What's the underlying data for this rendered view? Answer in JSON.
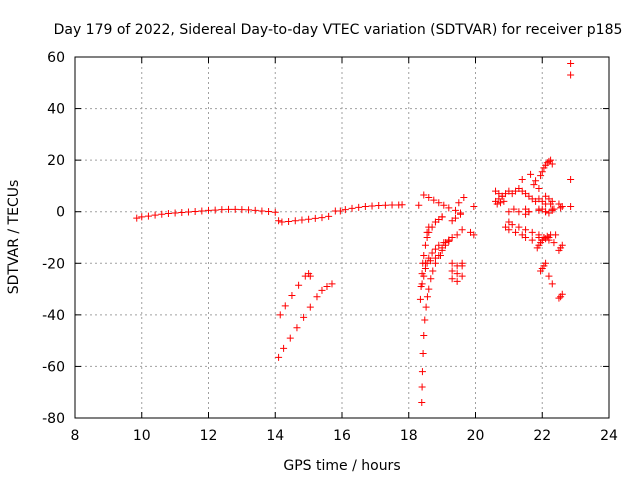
{
  "chart_data": {
    "type": "scatter",
    "title": "Day 179 of 2022, Sidereal Day-to-day VTEC variation (SDTVAR) for receiver p185",
    "xlabel": "GPS time / hours",
    "ylabel": "SDTVAR / TECUs",
    "xlim": [
      8,
      24
    ],
    "ylim": [
      -80,
      60
    ],
    "xticks": [
      8,
      10,
      12,
      14,
      16,
      18,
      20,
      22,
      24
    ],
    "yticks": [
      -80,
      -60,
      -40,
      -20,
      0,
      20,
      40,
      60
    ],
    "xtick_labels": [
      "8",
      "10",
      "12",
      "14",
      "16",
      "18",
      "20",
      "22",
      "24"
    ],
    "ytick_labels": [
      "-80",
      "-60",
      "-40",
      "-20",
      "0",
      "20",
      "40",
      "60"
    ],
    "grid": true,
    "marker": "+",
    "marker_color": "#ff0000",
    "series": [
      {
        "name": "SDTVAR",
        "x": [
          9.85,
          10.0,
          10.2,
          10.4,
          10.6,
          10.8,
          11.0,
          11.2,
          11.4,
          11.6,
          11.8,
          12.0,
          12.2,
          12.4,
          12.6,
          12.8,
          13.0,
          13.2,
          13.4,
          13.6,
          13.8,
          14.0,
          14.1,
          14.2,
          14.4,
          14.6,
          14.8,
          15.0,
          15.2,
          15.4,
          15.6,
          15.8,
          15.95,
          16.1,
          16.3,
          16.5,
          16.7,
          16.9,
          17.1,
          17.3,
          17.5,
          17.7,
          17.8,
          18.3,
          18.45,
          18.6,
          18.75,
          18.9,
          19.05,
          19.2,
          19.4,
          19.55,
          14.15,
          14.3,
          14.5,
          14.7,
          14.9,
          15.0,
          15.05,
          14.1,
          14.25,
          14.45,
          14.65,
          14.85,
          15.05,
          15.25,
          15.4,
          15.55,
          15.7,
          18.35,
          18.37,
          18.4,
          18.42,
          18.45,
          18.5,
          18.55,
          18.6,
          18.7,
          18.8,
          18.9,
          19.0,
          18.39,
          18.4,
          18.41,
          18.43,
          18.45,
          18.48,
          18.52,
          18.56,
          18.6,
          18.66,
          18.72,
          18.8,
          18.9,
          19.0,
          19.1,
          19.2,
          18.4,
          18.45,
          18.5,
          18.55,
          18.6,
          18.7,
          18.8,
          18.9,
          19.05,
          19.2,
          18.5,
          18.65,
          18.8,
          18.95,
          19.0,
          19.1,
          19.2,
          19.3,
          19.45,
          19.6,
          19.3,
          19.45,
          19.6,
          19.3,
          19.45,
          19.6,
          19.3,
          19.45,
          19.6,
          19.3,
          19.4,
          19.55,
          19.5,
          19.65,
          18.55,
          18.6,
          18.8,
          19.0,
          19.85,
          19.95,
          19.95,
          20.6,
          20.7,
          20.8,
          20.9,
          21.0,
          21.1,
          21.2,
          21.3,
          21.4,
          21.5,
          21.6,
          21.7,
          21.8,
          21.9,
          22.0,
          22.1,
          22.2,
          22.3,
          22.5,
          22.6,
          20.9,
          21.0,
          21.2,
          21.4,
          21.5,
          21.7,
          21.9,
          22.0,
          22.2,
          22.4,
          21.0,
          21.1,
          21.3,
          21.5,
          21.7,
          21.9,
          22.05,
          22.2,
          22.35,
          21.0,
          21.15,
          21.3,
          21.5,
          21.6,
          21.9,
          22.1,
          22.3,
          21.4,
          21.65,
          21.75,
          21.8,
          21.9,
          22.1,
          22.25,
          22.35,
          21.95,
          22.0,
          22.05,
          22.1,
          22.15,
          22.2,
          22.25,
          22.3,
          21.95,
          22.0,
          22.05,
          22.1,
          22.2,
          22.3,
          21.85,
          21.9,
          21.95,
          22.0,
          22.05,
          22.1,
          22.15,
          22.25,
          22.5,
          22.55,
          22.6,
          22.5,
          22.55,
          22.6,
          22.85,
          22.85,
          22.85,
          22.85,
          22.55,
          20.6,
          20.7,
          20.8,
          20.65,
          20.75,
          20.85,
          21.5,
          21.6,
          21.9,
          22.0,
          22.1,
          22.2,
          22.3
        ],
        "y": [
          -2.5,
          -2.0,
          -1.7,
          -1.3,
          -1.0,
          -0.7,
          -0.5,
          -0.3,
          -0.1,
          0.1,
          0.3,
          0.5,
          0.6,
          0.8,
          0.9,
          0.9,
          0.8,
          0.7,
          0.5,
          0.3,
          0.1,
          -0.2,
          -3.5,
          -4.0,
          -3.8,
          -3.5,
          -3.2,
          -2.9,
          -2.6,
          -2.3,
          -1.8,
          0.3,
          0.3,
          0.8,
          1.3,
          1.7,
          2.0,
          2.2,
          2.4,
          2.5,
          2.6,
          2.6,
          2.7,
          2.5,
          6.5,
          5.5,
          4.5,
          3.5,
          2.5,
          1.5,
          0.5,
          -0.5,
          -40.0,
          -36.5,
          -32.5,
          -28.5,
          -25.0,
          -24.0,
          -25.0,
          -56.5,
          -53.0,
          -49.0,
          -45.0,
          -41.0,
          -37.0,
          -33.0,
          -30.5,
          -29.0,
          -28.0,
          -34.0,
          -29.0,
          -24.0,
          -20.0,
          -17.0,
          -13.0,
          -10.0,
          -8.0,
          -6.0,
          -4.0,
          -3.0,
          -2.0,
          -74.0,
          -68.0,
          -62.0,
          -55.0,
          -48.0,
          -42.0,
          -37.0,
          -33.0,
          -30.0,
          -26.0,
          -23.0,
          -20.0,
          -17.0,
          -15.0,
          -13.0,
          -11.5,
          -28.0,
          -25.0,
          -22.0,
          -20.0,
          -18.0,
          -16.0,
          -14.5,
          -13.0,
          -12.0,
          -11.0,
          -20.0,
          -19.0,
          -18.0,
          -17.0,
          -14.0,
          -12.0,
          -11.0,
          -10.0,
          -9.0,
          -7.0,
          -20.0,
          -21.0,
          -20.0,
          -23.0,
          -24.0,
          -21.0,
          -26.0,
          -27.0,
          -25.0,
          -3.5,
          -2.5,
          -1.0,
          3.5,
          5.5,
          -8.0,
          -6.0,
          -4.0,
          -2.0,
          -8.0,
          -9.0,
          2.0,
          8.0,
          7.0,
          6.0,
          7.0,
          8.0,
          7.0,
          8.0,
          9.0,
          8.0,
          7.0,
          6.0,
          5.0,
          4.0,
          5.0,
          4.0,
          3.0,
          5.0,
          4.0,
          3.0,
          2.0,
          -6.0,
          -7.0,
          -8.0,
          -9.0,
          -10.0,
          -11.0,
          -10.0,
          -11.0,
          -10.0,
          -9.0,
          -4.0,
          -5.0,
          -6.0,
          -7.0,
          -8.0,
          -9.0,
          -10.0,
          -11.0,
          -12.0,
          0.0,
          1.0,
          0.0,
          1.0,
          0.0,
          1.0,
          0.0,
          1.0,
          12.5,
          14.5,
          10.5,
          12.0,
          9.0,
          6.0,
          3.0,
          1.0,
          14.0,
          15.5,
          17.0,
          18.0,
          19.0,
          19.5,
          20.0,
          18.5,
          -23.0,
          -22.0,
          -21.0,
          -20.0,
          -25.0,
          -28.0,
          -14.0,
          -13.0,
          -12.0,
          -11.0,
          -10.0,
          -10.5,
          -9.5,
          -9.0,
          -33.5,
          -33.0,
          -32.0,
          -15.0,
          -14.0,
          -13.0,
          57.5,
          53.0,
          12.5,
          2.0,
          1.5,
          4.0,
          5.0,
          6.0,
          3.0,
          3.5,
          4.0,
          -1.0,
          0.0,
          0.5,
          1.0,
          0.0,
          -0.5,
          0.5
        ]
      }
    ]
  }
}
